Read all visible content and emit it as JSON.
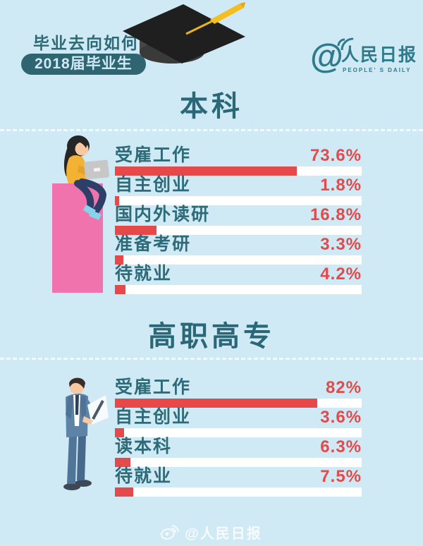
{
  "app": {
    "bg_color": "#cfe9f5",
    "accent_red": "#e5494a",
    "teal": "#2b6877",
    "pink": "#f173ae"
  },
  "header": {
    "question": "毕业去向如何？",
    "badge": "2018届毕业生",
    "logo": {
      "at": "@",
      "name": "人民日报",
      "subtitle": "PEOPLE' S DAILY"
    }
  },
  "chart_data": [
    {
      "type": "bar",
      "title": "本科",
      "orientation": "horizontal",
      "xlim": [
        0,
        100
      ],
      "unit": "%",
      "grid": false,
      "legend": "none",
      "bar_color": "#e5494a",
      "track_color": "#ffffff",
      "categories": [
        "受雇工作",
        "自主创业",
        "国内外读研",
        "准备考研",
        "待就业"
      ],
      "values": [
        73.6,
        1.8,
        16.8,
        3.3,
        4.2
      ],
      "value_labels": [
        "73.6%",
        "1.8%",
        "16.8%",
        "3.3%",
        "4.2%"
      ]
    },
    {
      "type": "bar",
      "title": "高职高专",
      "orientation": "horizontal",
      "xlim": [
        0,
        100
      ],
      "unit": "%",
      "grid": false,
      "legend": "none",
      "bar_color": "#e5494a",
      "track_color": "#ffffff",
      "categories": [
        "受雇工作",
        "自主创业",
        "读本科",
        "待就业"
      ],
      "values": [
        82,
        3.6,
        6.3,
        7.5
      ],
      "value_labels": [
        "82%",
        "3.6%",
        "6.3%",
        "7.5%"
      ]
    }
  ],
  "footer": {
    "watermark": "@人民日报"
  }
}
